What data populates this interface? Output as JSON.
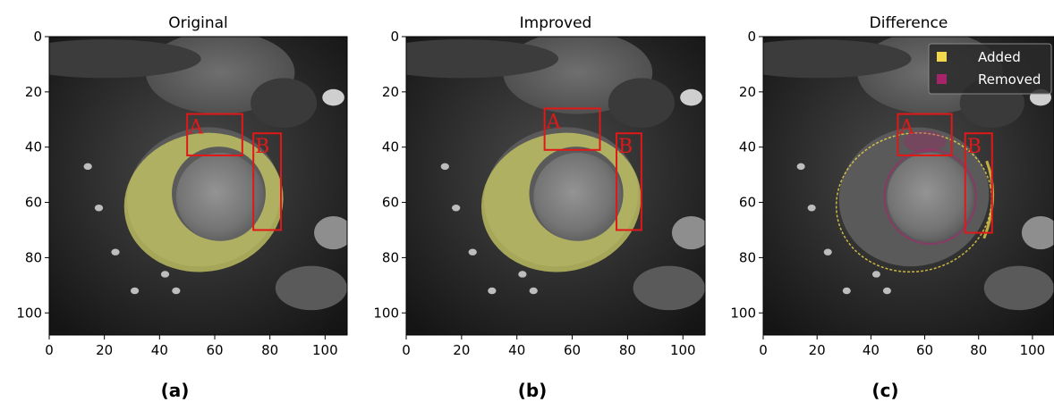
{
  "panels": [
    {
      "id": "a",
      "title": "Original",
      "caption": "(a)",
      "mode": "mask",
      "boxes": [
        {
          "label": "A",
          "x0": 50,
          "x1": 70,
          "y0": 28,
          "y1": 43
        },
        {
          "label": "B",
          "x0": 74,
          "x1": 84,
          "y0": 35,
          "y1": 70
        }
      ]
    },
    {
      "id": "b",
      "title": "Improved",
      "caption": "(b)",
      "mode": "mask",
      "boxes": [
        {
          "label": "A",
          "x0": 50,
          "x1": 70,
          "y0": 26,
          "y1": 41
        },
        {
          "label": "B",
          "x0": 76,
          "x1": 85,
          "y0": 35,
          "y1": 70
        }
      ]
    },
    {
      "id": "c",
      "title": "Difference",
      "caption": "(c)",
      "mode": "difference",
      "boxes": [
        {
          "label": "A",
          "x0": 50,
          "x1": 70,
          "y0": 28,
          "y1": 43
        },
        {
          "label": "B",
          "x0": 75,
          "x1": 85,
          "y0": 35,
          "y1": 71
        }
      ],
      "legend": [
        {
          "label": "Added",
          "color": "#f2d84a"
        },
        {
          "label": "Removed",
          "color": "#a8246a"
        }
      ]
    }
  ],
  "axes": {
    "xlim": [
      0,
      108
    ],
    "ylim": [
      108,
      0
    ],
    "xticks": [
      "0",
      "20",
      "40",
      "60",
      "80",
      "100"
    ],
    "yticks": [
      "0",
      "20",
      "40",
      "60",
      "80",
      "100"
    ]
  },
  "colors": {
    "mask": "#c8c865",
    "box": "#e01818",
    "added": "#f2d84a",
    "removed": "#a8246a"
  }
}
